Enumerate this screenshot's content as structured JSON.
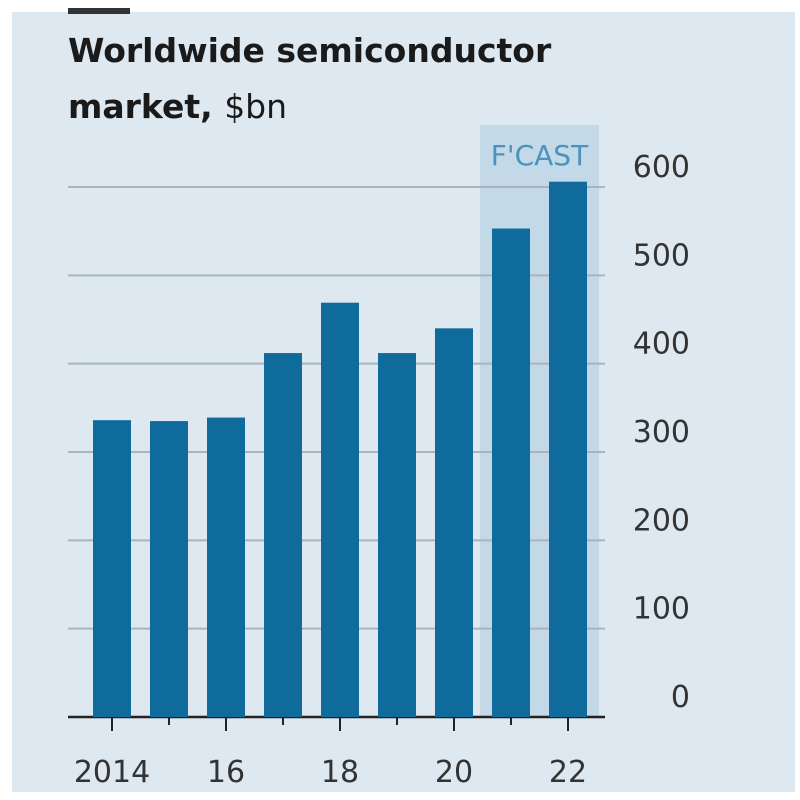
{
  "chart_data": {
    "type": "bar",
    "title": "Worldwide semiconductor market,",
    "unit": "$bn",
    "categories": [
      "2014",
      "2015",
      "2016",
      "2017",
      "2018",
      "2019",
      "2020",
      "2021",
      "2022"
    ],
    "x_tick_labels": [
      "2014",
      "16",
      "18",
      "20",
      "22"
    ],
    "x_tick_years": [
      "2014",
      "2016",
      "2018",
      "2020",
      "2022"
    ],
    "values": [
      336,
      335,
      339,
      412,
      469,
      412,
      440,
      553,
      606
    ],
    "forecast_label": "F'CAST",
    "forecast_categories": [
      "2021",
      "2022"
    ],
    "ylim": [
      0,
      600
    ],
    "yticks": [
      0,
      100,
      200,
      300,
      400,
      500,
      600
    ],
    "y_axis_side": "right",
    "grid": true,
    "colors": {
      "bar": "#0f6b9c",
      "background": "#dde8f0",
      "forecast_shade": "#c3d9e7",
      "forecast_text": "#4a93c0",
      "grid": "#a9b4bc"
    }
  }
}
